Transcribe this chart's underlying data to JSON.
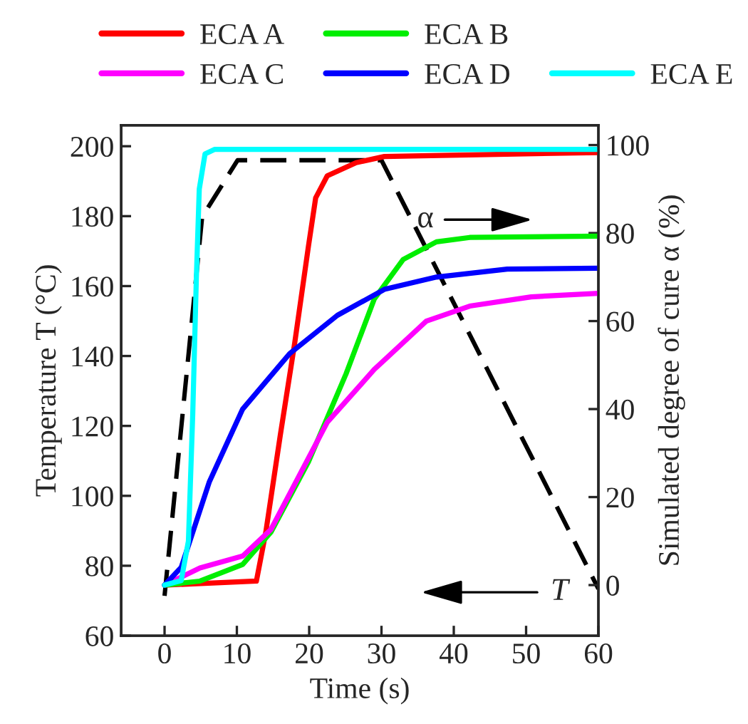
{
  "chart_data": {
    "type": "line",
    "xlabel": "Time (s)",
    "ylabel": "Temperature T (°C)",
    "y2label": "Simulated degree of cure α (%)",
    "xlim": [
      -6,
      60
    ],
    "xticks": [
      0,
      10,
      20,
      30,
      40,
      50,
      60
    ],
    "ylim": [
      60,
      206
    ],
    "yticks": [
      60,
      80,
      100,
      120,
      140,
      160,
      180,
      200
    ],
    "y2lim": [
      -11.5,
      104.5
    ],
    "y2ticks": [
      0,
      20,
      40,
      60,
      80,
      100
    ],
    "grid": false,
    "legend": "top",
    "marker": "none",
    "annotations": [
      "α",
      "T"
    ],
    "series": [
      {
        "name": "ECA A",
        "color": "#ff0000",
        "axis": "y2",
        "x": [
          0,
          12.7,
          14,
          16,
          18,
          19.9,
          20.9,
          22.5,
          26.5,
          30.4,
          60
        ],
        "values": [
          0,
          0.9,
          12,
          34,
          55,
          77,
          88,
          93,
          96,
          97.4,
          98.3
        ]
      },
      {
        "name": "ECA B",
        "color": "#00ee00",
        "axis": "y2",
        "x": [
          0,
          4.9,
          10.8,
          14.7,
          19.9,
          25.1,
          29,
          33,
          37.6,
          42.2,
          60
        ],
        "values": [
          0,
          0.9,
          4.7,
          12,
          28,
          48,
          65,
          74,
          78,
          79,
          79.3
        ]
      },
      {
        "name": "ECA C",
        "color": "#ff00ff",
        "axis": "y2",
        "x": [
          0,
          4.9,
          10.8,
          14.7,
          22.5,
          29,
          36.2,
          42.2,
          50.7,
          60
        ],
        "values": [
          0,
          3.9,
          6.6,
          12.6,
          37,
          49,
          60,
          63.4,
          65.5,
          66.3
        ]
      },
      {
        "name": "ECA D",
        "color": "#0000ff",
        "axis": "y2",
        "x": [
          0,
          2.3,
          6.2,
          10.8,
          17.3,
          23.9,
          30.4,
          37.6,
          47.4,
          60
        ],
        "values": [
          0,
          4,
          23.5,
          40,
          52.6,
          61.3,
          67.2,
          70,
          71.8,
          72
        ]
      },
      {
        "name": "ECA E",
        "color": "#00ffff",
        "axis": "y2",
        "x": [
          0,
          2.3,
          3.3,
          3.9,
          4.4,
          4.8,
          5.6,
          6.9,
          60
        ],
        "values": [
          0,
          1,
          10,
          39,
          70,
          90,
          98,
          99,
          99
        ]
      },
      {
        "color": "#000000",
        "axis": "y",
        "line_style": "dashed",
        "x": [
          0,
          5.2,
          10.1,
          30,
          60
        ],
        "values": [
          71.4,
          179.8,
          196,
          196,
          73.4
        ]
      }
    ]
  }
}
